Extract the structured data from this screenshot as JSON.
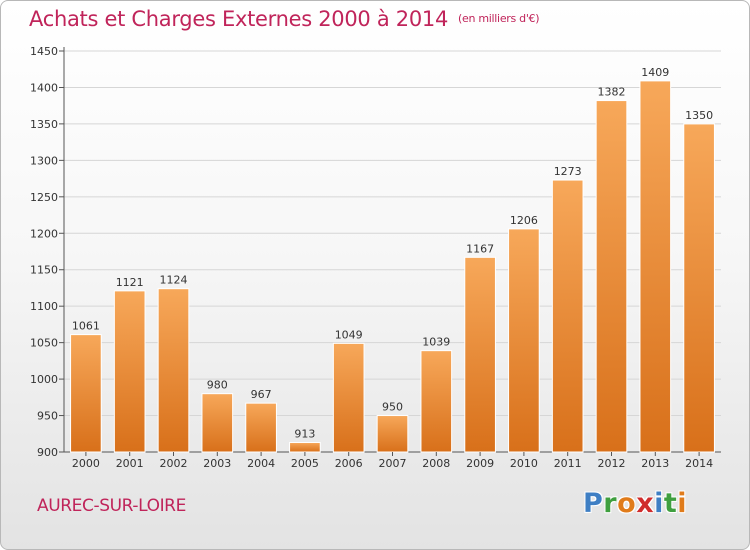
{
  "header": {
    "title": "Achats et Charges Externes 2000 à 2014",
    "subtitle": "(en milliers d'€)"
  },
  "commune": "AUREC-SUR-LOIRE",
  "logo": {
    "letters": [
      {
        "ch": "P",
        "color": "#3f7fc4"
      },
      {
        "ch": "r",
        "color": "#3f9f3f"
      },
      {
        "ch": "o",
        "color": "#e07b1a"
      },
      {
        "ch": "x",
        "color": "#d02c2c"
      },
      {
        "ch": "i",
        "color": "#3f7fc4"
      },
      {
        "ch": "t",
        "color": "#3f9f3f"
      },
      {
        "ch": "i",
        "color": "#e07b1a"
      }
    ]
  },
  "chart_data": {
    "type": "bar",
    "categories": [
      "2000",
      "2001",
      "2002",
      "2003",
      "2004",
      "2005",
      "2006",
      "2007",
      "2008",
      "2009",
      "2010",
      "2011",
      "2012",
      "2013",
      "2014"
    ],
    "values": [
      1061,
      1121,
      1124,
      980,
      967,
      913,
      1049,
      950,
      1039,
      1167,
      1206,
      1273,
      1382,
      1409,
      1350
    ],
    "ylim": [
      900,
      1450
    ],
    "yticks": [
      900,
      950,
      1000,
      1050,
      1100,
      1150,
      1200,
      1250,
      1300,
      1350,
      1400,
      1450
    ],
    "grid": true,
    "bar_color_top": "#f7a85a",
    "bar_color_bottom": "#d8701a",
    "legend": "none"
  }
}
